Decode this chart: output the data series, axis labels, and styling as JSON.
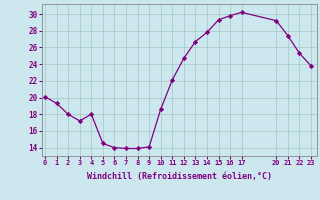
{
  "x": [
    0,
    1,
    2,
    3,
    4,
    5,
    6,
    7,
    8,
    9,
    10,
    11,
    12,
    13,
    14,
    15,
    16,
    17,
    20,
    21,
    22,
    23
  ],
  "y": [
    20.1,
    19.3,
    18.0,
    17.2,
    18.0,
    14.5,
    14.0,
    13.9,
    13.9,
    14.1,
    18.6,
    22.1,
    24.7,
    26.7,
    27.8,
    29.3,
    29.8,
    30.2,
    29.2,
    27.4,
    25.3,
    23.8
  ],
  "line_color": "#800080",
  "marker": "D",
  "marker_size": 2.2,
  "bg_color": "#cce8ee",
  "grid_color": "#aacccc",
  "xlabel": "Windchill (Refroidissement éolien,°C)",
  "xlabel_color": "#800080",
  "tick_color": "#800080",
  "ylabel_ticks": [
    14,
    16,
    18,
    20,
    22,
    24,
    26,
    28,
    30
  ],
  "xtick_labels": [
    "0",
    "1",
    "2",
    "3",
    "4",
    "5",
    "6",
    "7",
    "8",
    "9",
    "10",
    "11",
    "12",
    "13",
    "14",
    "15",
    "16",
    "17",
    "20",
    "21",
    "22",
    "23"
  ],
  "xtick_positions": [
    0,
    1,
    2,
    3,
    4,
    5,
    6,
    7,
    8,
    9,
    10,
    11,
    12,
    13,
    14,
    15,
    16,
    17,
    20,
    21,
    22,
    23
  ],
  "xlim": [
    -0.3,
    23.5
  ],
  "ylim": [
    13.0,
    31.2
  ],
  "spine_color": "#888888"
}
